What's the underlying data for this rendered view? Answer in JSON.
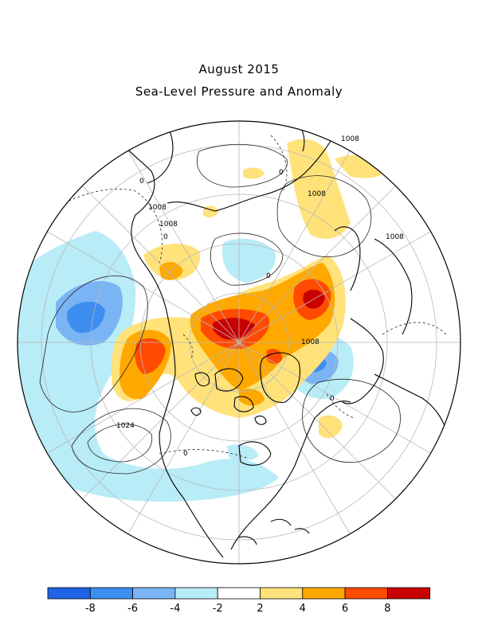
{
  "title": "August 2015",
  "subtitle": "Sea-Level Pressure and Anomaly",
  "legend": {
    "colors": [
      "#1f63e6",
      "#3d8ef0",
      "#7bb4f4",
      "#b8ecf7",
      "#ffffff",
      "#ffe27a",
      "#ffa800",
      "#ff4a00",
      "#c80000"
    ],
    "ticks": [
      "-8",
      "-6",
      "-4",
      "-2",
      "2",
      "4",
      "6",
      "8"
    ]
  },
  "contour_labels": [
    "1008",
    "0",
    "1008",
    "1008",
    "1008",
    "0",
    "1008",
    "0",
    "1008",
    "0",
    "1024",
    "0",
    "0"
  ]
}
